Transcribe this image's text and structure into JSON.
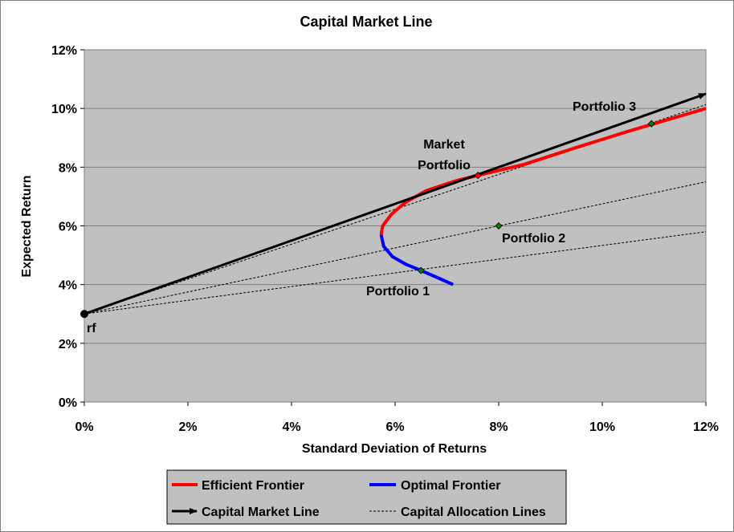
{
  "chart_data": {
    "type": "line",
    "title": "Capital Market Line",
    "xlabel": "Standard Deviation of Returns",
    "ylabel": "Expected Return",
    "xlim": [
      0,
      12
    ],
    "ylim": [
      0,
      12
    ],
    "x_ticks": [
      "0%",
      "2%",
      "4%",
      "6%",
      "8%",
      "10%",
      "12%"
    ],
    "y_ticks": [
      "0%",
      "2%",
      "4%",
      "6%",
      "8%",
      "10%",
      "12%"
    ],
    "grid": "horizontal",
    "plot_background": "#c0c0c0",
    "legend_position": "bottom",
    "series": [
      {
        "name": "Efficient Frontier",
        "color": "#ff0000",
        "points": [
          [
            5.73,
            5.7
          ],
          [
            5.76,
            6.0
          ],
          [
            5.93,
            6.4
          ],
          [
            6.2,
            6.8
          ],
          [
            6.6,
            7.2
          ],
          [
            7.2,
            7.55
          ],
          [
            7.6,
            7.72
          ],
          [
            8.5,
            8.1
          ],
          [
            9.5,
            8.67
          ],
          [
            10.5,
            9.22
          ],
          [
            11.0,
            9.48
          ],
          [
            11.5,
            9.74
          ],
          [
            12.0,
            10.0
          ]
        ]
      },
      {
        "name": "Optimal Frontier",
        "color": "#0000ff",
        "points": [
          [
            5.73,
            5.7
          ],
          [
            5.78,
            5.3
          ],
          [
            5.95,
            4.95
          ],
          [
            6.2,
            4.7
          ],
          [
            6.5,
            4.48
          ],
          [
            6.8,
            4.25
          ],
          [
            7.12,
            4.0
          ]
        ]
      },
      {
        "name": "Capital Market Line",
        "color": "#000000",
        "points": [
          [
            0,
            3.0
          ],
          [
            12.0,
            10.5
          ]
        ]
      },
      {
        "name": "Capital Allocation Lines",
        "color": "#000000",
        "lines": [
          [
            [
              0,
              3.0
            ],
            [
              12.0,
              5.8
            ]
          ],
          [
            [
              0,
              3.0
            ],
            [
              12.0,
              7.5
            ]
          ],
          [
            [
              0,
              3.0
            ],
            [
              12.0,
              10.13
            ]
          ]
        ]
      }
    ],
    "points": [
      {
        "label": "rf",
        "x": 0,
        "y": 3.0,
        "color": "#000000"
      },
      {
        "label": "Market Portfolio",
        "x": 7.6,
        "y": 7.72,
        "color": "#ff0000"
      },
      {
        "label": "Portfolio 1",
        "x": 6.5,
        "y": 4.48,
        "color": "#008000"
      },
      {
        "label": "Portfolio 2",
        "x": 8.0,
        "y": 6.0,
        "color": "#008000"
      },
      {
        "label": "Portfolio 3",
        "x": 10.95,
        "y": 9.48,
        "color": "#008000"
      }
    ],
    "annotations": {
      "rf": "rf",
      "market_line1": "Market",
      "market_line2": "Portfolio",
      "portfolio1": "Portfolio 1",
      "portfolio2": "Portfolio 2",
      "portfolio3": "Portfolio 3"
    },
    "legend": [
      {
        "label": "Efficient Frontier",
        "style": "red-thick"
      },
      {
        "label": "Optimal Frontier",
        "style": "blue-thick"
      },
      {
        "label": "Capital Market Line",
        "style": "black-arrow"
      },
      {
        "label": "Capital Allocation Lines",
        "style": "black-dashed"
      }
    ]
  }
}
